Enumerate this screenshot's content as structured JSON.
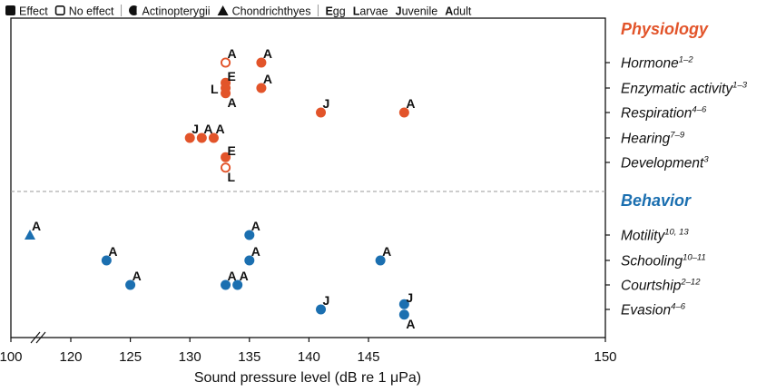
{
  "legend": [
    {
      "symbol": "filled-square",
      "label": "Effect"
    },
    {
      "symbol": "open-square",
      "label": "No effect"
    },
    {
      "symbol": "half-circle",
      "label": "Actinopterygii"
    },
    {
      "symbol": "triangle",
      "label": "Chondrichthyes"
    },
    {
      "symbol": "none",
      "bold": "E",
      "rest": "gg"
    },
    {
      "symbol": "none",
      "bold": "L",
      "rest": "arvae"
    },
    {
      "symbol": "none",
      "bold": "J",
      "rest": "uvenile"
    },
    {
      "symbol": "none",
      "bold": "A",
      "rest": "dult"
    }
  ],
  "colors": {
    "physiology": "#e2542a",
    "behavior": "#1b6fb0",
    "axis": "#111111",
    "separator": "#999999"
  },
  "chart_data": {
    "type": "scatter",
    "xlabel": "Sound pressure level (dB re 1 μPa)",
    "xlim": [
      100,
      150
    ],
    "xticks": [
      100,
      120,
      125,
      130,
      135,
      140,
      145,
      150
    ],
    "axis_break": "between 100 and 120",
    "groups": [
      {
        "name": "Physiology",
        "categories": [
          {
            "label": "Hormone",
            "sup": "1–2"
          },
          {
            "label": "Enzymatic activity",
            "sup": "1–3"
          },
          {
            "label": "Respiration",
            "sup": "4–6"
          },
          {
            "label": "Hearing",
            "sup": "7–9"
          },
          {
            "label": "Development",
            "sup": "3"
          }
        ]
      },
      {
        "name": "Behavior",
        "categories": [
          {
            "label": "Motility",
            "sup": "10, 13"
          },
          {
            "label": "Schooling",
            "sup": "10–11"
          },
          {
            "label": "Courtship",
            "sup": "2–12"
          },
          {
            "label": "Evasion",
            "sup": "4–6"
          }
        ]
      }
    ],
    "points": [
      {
        "group": "Physiology",
        "category": "Hormone",
        "x": 133,
        "stage": "A",
        "effect": false,
        "taxon": "Actinopterygii",
        "offset": 0
      },
      {
        "group": "Physiology",
        "category": "Hormone",
        "x": 136,
        "stage": "A",
        "effect": true,
        "taxon": "Actinopterygii",
        "offset": 0
      },
      {
        "group": "Physiology",
        "category": "Enzymatic activity",
        "x": 133,
        "stage": "E",
        "effect": true,
        "taxon": "Actinopterygii",
        "offset": -1
      },
      {
        "group": "Physiology",
        "category": "Enzymatic activity",
        "x": 133,
        "stage": "L",
        "effect": true,
        "taxon": "Actinopterygii",
        "offset": 0
      },
      {
        "group": "Physiology",
        "category": "Enzymatic activity",
        "x": 133,
        "stage": "A",
        "effect": true,
        "taxon": "Actinopterygii",
        "offset": 1
      },
      {
        "group": "Physiology",
        "category": "Enzymatic activity",
        "x": 136,
        "stage": "A",
        "effect": true,
        "taxon": "Actinopterygii",
        "offset": 0
      },
      {
        "group": "Physiology",
        "category": "Respiration",
        "x": 141,
        "stage": "J",
        "effect": true,
        "taxon": "Actinopterygii",
        "offset": 0
      },
      {
        "group": "Physiology",
        "category": "Respiration",
        "x": 148,
        "stage": "A",
        "effect": true,
        "taxon": "Actinopterygii",
        "offset": 0
      },
      {
        "group": "Physiology",
        "category": "Hearing",
        "x": 130,
        "stage": "J",
        "effect": true,
        "taxon": "Actinopterygii",
        "offset": 0
      },
      {
        "group": "Physiology",
        "category": "Hearing",
        "x": 131,
        "stage": "A",
        "effect": true,
        "taxon": "Actinopterygii",
        "offset": 0
      },
      {
        "group": "Physiology",
        "category": "Hearing",
        "x": 132,
        "stage": "A",
        "effect": true,
        "taxon": "Actinopterygii",
        "offset": 0
      },
      {
        "group": "Physiology",
        "category": "Development",
        "x": 133,
        "stage": "E",
        "effect": true,
        "taxon": "Actinopterygii",
        "offset": -1
      },
      {
        "group": "Physiology",
        "category": "Development",
        "x": 133,
        "stage": "L",
        "effect": false,
        "taxon": "Actinopterygii",
        "offset": 1
      },
      {
        "group": "Behavior",
        "category": "Motility",
        "x": 101,
        "stage": "A",
        "effect": true,
        "taxon": "Chondrichthyes",
        "offset": 0
      },
      {
        "group": "Behavior",
        "category": "Motility",
        "x": 135,
        "stage": "A",
        "effect": true,
        "taxon": "Actinopterygii",
        "offset": 0
      },
      {
        "group": "Behavior",
        "category": "Schooling",
        "x": 123,
        "stage": "A",
        "effect": true,
        "taxon": "Actinopterygii",
        "offset": 0
      },
      {
        "group": "Behavior",
        "category": "Schooling",
        "x": 135,
        "stage": "A",
        "effect": true,
        "taxon": "Actinopterygii",
        "offset": 0
      },
      {
        "group": "Behavior",
        "category": "Schooling",
        "x": 146,
        "stage": "A",
        "effect": true,
        "taxon": "Actinopterygii",
        "offset": 0
      },
      {
        "group": "Behavior",
        "category": "Courtship",
        "x": 125,
        "stage": "A",
        "effect": true,
        "taxon": "Actinopterygii",
        "offset": 0
      },
      {
        "group": "Behavior",
        "category": "Courtship",
        "x": 133,
        "stage": "A",
        "effect": true,
        "taxon": "Actinopterygii",
        "offset": 0
      },
      {
        "group": "Behavior",
        "category": "Courtship",
        "x": 134,
        "stage": "A",
        "effect": true,
        "taxon": "Actinopterygii",
        "offset": 0
      },
      {
        "group": "Behavior",
        "category": "Evasion",
        "x": 141,
        "stage": "J",
        "effect": true,
        "taxon": "Actinopterygii",
        "offset": 0
      },
      {
        "group": "Behavior",
        "category": "Evasion",
        "x": 148,
        "stage": "J",
        "effect": true,
        "taxon": "Actinopterygii",
        "offset": -1
      },
      {
        "group": "Behavior",
        "category": "Evasion",
        "x": 148,
        "stage": "A",
        "effect": true,
        "taxon": "Actinopterygii",
        "offset": 1
      }
    ]
  }
}
